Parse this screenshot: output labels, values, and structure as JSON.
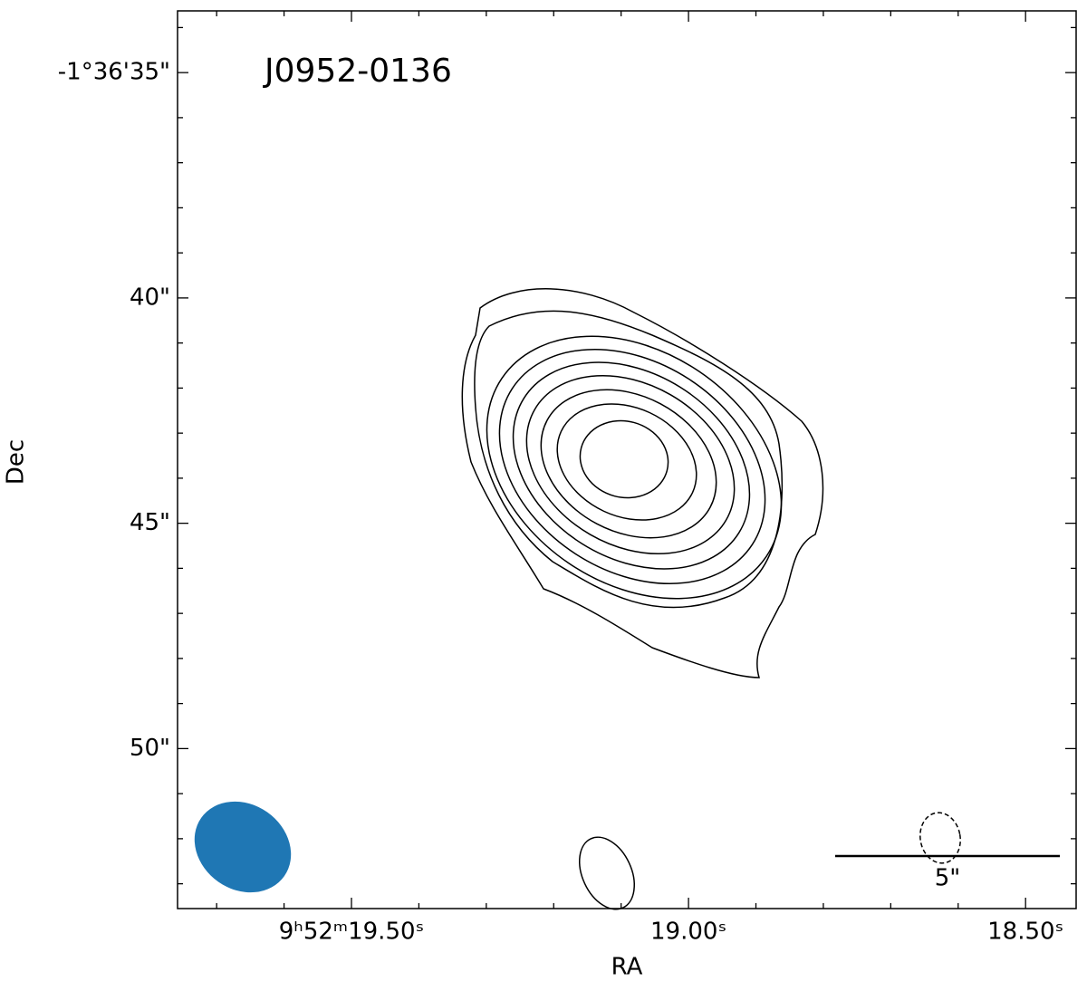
{
  "chart_data": {
    "type": "contour",
    "title": "J0952-0136",
    "xlabel": "RA",
    "ylabel": "Dec",
    "xlim": [
      19.758,
      18.425
    ],
    "ylim": [
      53.55,
      33.63
    ],
    "xticks": [
      {
        "value": 19.5,
        "label": "9ʰ52ᵐ19.50ˢ"
      },
      {
        "value": 19.0,
        "label": "19.00ˢ"
      },
      {
        "value": 18.5,
        "label": "18.50ˢ"
      }
    ],
    "yticks": [
      {
        "value": 35,
        "label": "-1°36'35\""
      },
      {
        "value": 40,
        "label": "40\""
      },
      {
        "value": 45,
        "label": "45\""
      },
      {
        "value": 50,
        "label": "50\""
      }
    ],
    "xminorticks": [
      19.7,
      19.6,
      19.4,
      19.3,
      19.2,
      19.1,
      18.9,
      18.8,
      18.7,
      18.6
    ],
    "yminorticks": [
      34,
      36,
      37,
      38,
      39,
      41,
      42,
      43,
      44,
      46,
      47,
      48,
      49,
      51,
      52,
      53
    ],
    "beam_color": "#1f77b4",
    "scale_label": "5\""
  }
}
